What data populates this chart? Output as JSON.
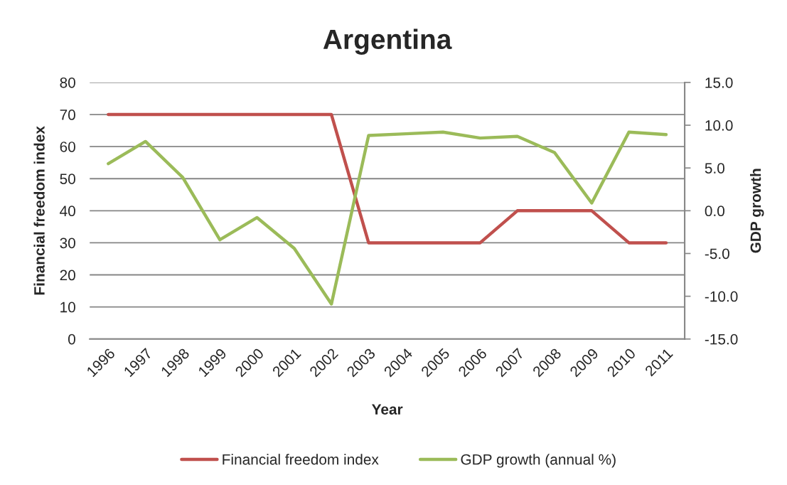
{
  "chart_data": {
    "type": "line",
    "title": "Argentina",
    "xlabel": "Year",
    "ylabel": "Financial freedom index",
    "y2label": "GDP growth",
    "categories": [
      "1996",
      "1997",
      "1998",
      "1999",
      "2000",
      "2001",
      "2002",
      "2003",
      "2004",
      "2005",
      "2006",
      "2007",
      "2008",
      "2009",
      "2010",
      "2011"
    ],
    "series": [
      {
        "name": "Financial freedom index",
        "color": "#c0504d",
        "values": [
          70,
          70,
          70,
          70,
          70,
          70,
          70,
          30,
          30,
          30,
          30,
          40,
          40,
          40,
          30,
          30
        ]
      },
      {
        "name": "GDP growth (annual %)",
        "color": "#9bbb59",
        "axis": "y2",
        "values": [
          5.5,
          8.1,
          3.9,
          -3.4,
          -0.8,
          -4.4,
          -10.9,
          8.8,
          9.0,
          9.2,
          8.5,
          8.7,
          6.8,
          0.9,
          9.2,
          8.9
        ]
      }
    ],
    "ylim": [
      0,
      80
    ],
    "yticks": [
      0,
      10,
      20,
      30,
      40,
      50,
      60,
      70,
      80
    ],
    "y2lim": [
      -15,
      15
    ],
    "y2ticks": [
      {
        "value": -15,
        "label": "-15.0"
      },
      {
        "value": -10,
        "label": "-10.0"
      },
      {
        "value": -5,
        "label": "-5.0"
      },
      {
        "value": 0,
        "label": "0.0"
      },
      {
        "value": 5,
        "label": "5.0"
      },
      {
        "value": 10,
        "label": "10.0"
      },
      {
        "value": 15,
        "label": "15.0"
      }
    ],
    "grid": "y",
    "legend": "bottom",
    "marker": "none",
    "line_style": "solid"
  }
}
